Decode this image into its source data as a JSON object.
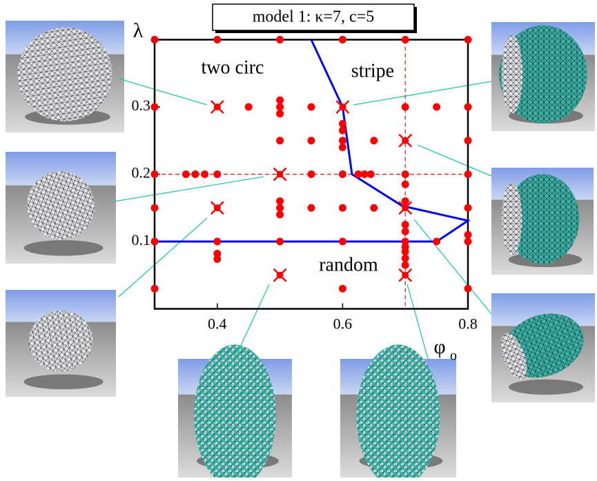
{
  "chart_data": {
    "type": "scatter",
    "title": "model 1:  κ=7, c=5",
    "y_label": "λ",
    "x_label": "φ",
    "x_label_sub": "o",
    "annotations": [
      "two circ",
      "stripe",
      "random"
    ],
    "xlim": [
      0.3,
      0.8
    ],
    "ylim": [
      0,
      0.4
    ],
    "xticks": [
      0.4,
      0.6,
      0.8
    ],
    "yticks": [
      0.1,
      0.2,
      0.3
    ],
    "vlines": [
      0.7
    ],
    "hlines": [
      0.2
    ],
    "ref_line_color": "#ff0000",
    "series": [
      {
        "marker": "circle",
        "color": "#ff0000",
        "x": [
          0.3,
          0.4,
          0.5,
          0.6,
          0.7,
          0.8,
          0.3,
          0.45,
          0.5,
          0.5,
          0.5,
          0.55,
          0.7,
          0.75,
          0.8,
          0.5,
          0.55,
          0.6,
          0.6,
          0.6,
          0.6,
          0.65,
          0.8,
          0.3,
          0.35,
          0.365,
          0.38,
          0.4,
          0.55,
          0.6,
          0.625,
          0.635,
          0.645,
          0.7,
          0.8,
          0.7,
          0.3,
          0.5,
          0.5,
          0.5,
          0.55,
          0.6,
          0.65,
          0.7,
          0.8,
          0.7,
          0.7,
          0.8,
          0.3,
          0.4,
          0.5,
          0.6,
          0.7,
          0.7,
          0.7,
          0.75,
          0.8,
          0.4,
          0.4,
          0.7,
          0.7,
          0.3,
          0.6,
          0.8
        ],
        "values": [
          0.4,
          0.4,
          0.4,
          0.4,
          0.4,
          0.4,
          0.3,
          0.3,
          0.31,
          0.3,
          0.29,
          0.3,
          0.3,
          0.3,
          0.3,
          0.25,
          0.25,
          0.275,
          0.265,
          0.25,
          0.24,
          0.25,
          0.25,
          0.2,
          0.2,
          0.2,
          0.2,
          0.2,
          0.2,
          0.2,
          0.2,
          0.2,
          0.2,
          0.2,
          0.2,
          0.185,
          0.15,
          0.16,
          0.15,
          0.14,
          0.15,
          0.15,
          0.15,
          0.16,
          0.15,
          0.125,
          0.115,
          0.11,
          0.1,
          0.1,
          0.1,
          0.1,
          0.1,
          0.092,
          0.085,
          0.1,
          0.1,
          0.082,
          0.074,
          0.075,
          0.065,
          0.03,
          0.03,
          0.03
        ]
      },
      {
        "marker": "cross",
        "color": "#ff0000",
        "x": [
          0.4,
          0.6,
          0.7,
          0.5,
          0.4,
          0.7,
          0.5,
          0.7
        ],
        "values": [
          0.3,
          0.3,
          0.25,
          0.2,
          0.15,
          0.15,
          0.05,
          0.05
        ]
      },
      {
        "marker": "line",
        "color": "#0000ff",
        "x": [
          0.55,
          0.6,
          0.615,
          0.695,
          0.8,
          0.75,
          0.3
        ],
        "values": [
          0.4,
          0.3,
          0.2,
          0.153,
          0.131,
          0.1,
          0.1
        ]
      }
    ]
  }
}
